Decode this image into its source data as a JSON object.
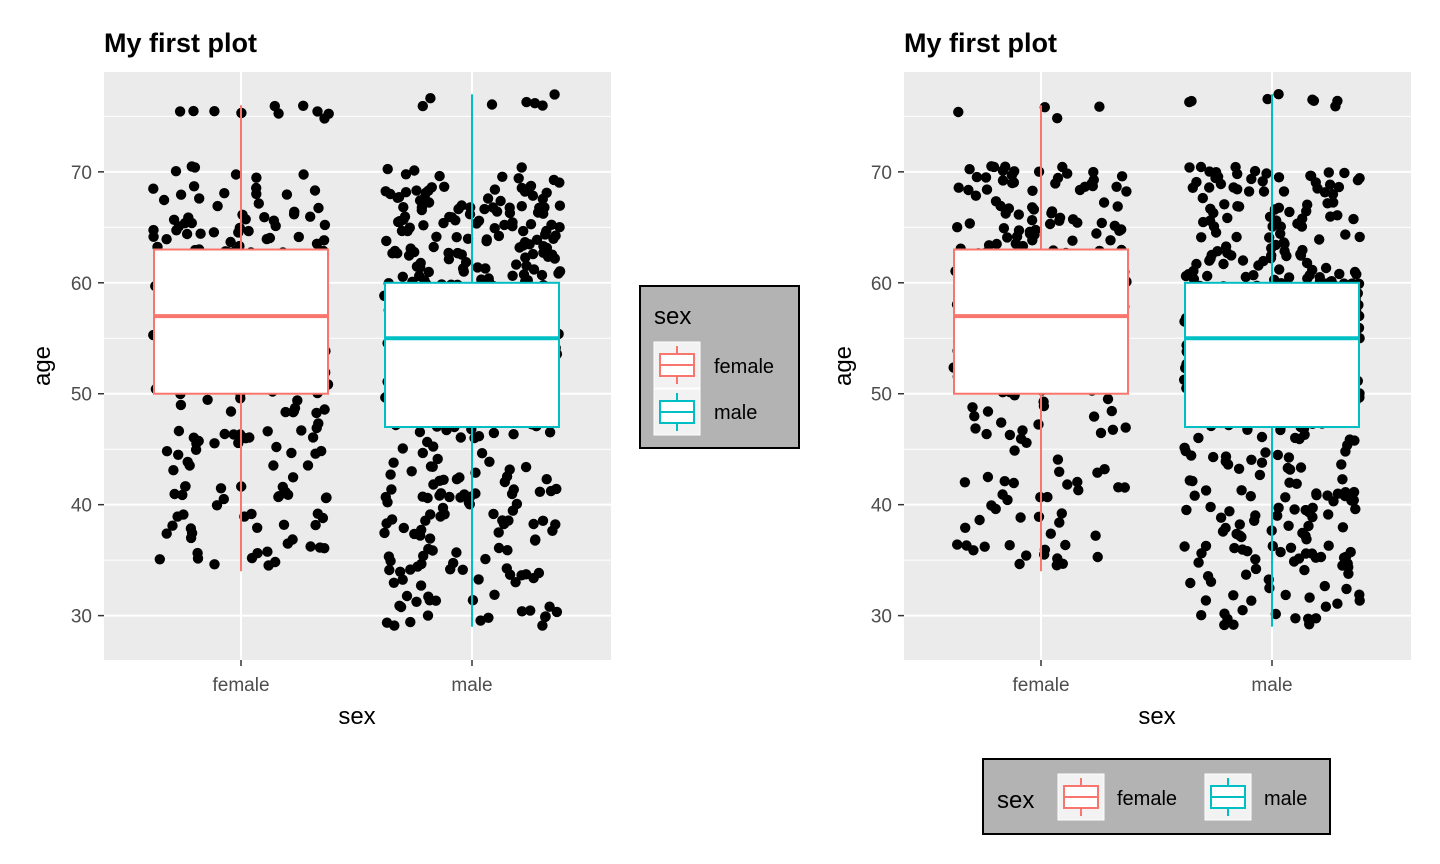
{
  "chart_data": [
    {
      "type": "boxplot",
      "title": "My first plot",
      "xlabel": "sex",
      "ylabel": "age",
      "categories": [
        "female",
        "male"
      ],
      "yticks": [
        30,
        40,
        50,
        60,
        70
      ],
      "ylim": [
        26,
        79
      ],
      "grid": true,
      "legend_position": "right",
      "boxes": [
        {
          "category": "female",
          "color": "#F8766D",
          "min": 34,
          "q1": 50,
          "median": 57,
          "q3": 63,
          "max": 76
        },
        {
          "category": "male",
          "color": "#00BFC4",
          "min": 29,
          "q1": 47,
          "median": 55,
          "q3": 60,
          "max": 77
        }
      ]
    },
    {
      "type": "boxplot",
      "title": "My first plot",
      "xlabel": "sex",
      "ylabel": "age",
      "categories": [
        "female",
        "male"
      ],
      "yticks": [
        30,
        40,
        50,
        60,
        70
      ],
      "ylim": [
        26,
        79
      ],
      "grid": true,
      "legend_position": "bottom",
      "boxes": [
        {
          "category": "female",
          "color": "#F8766D",
          "min": 34,
          "q1": 50,
          "median": 57,
          "q3": 63,
          "max": 76
        },
        {
          "category": "male",
          "color": "#00BFC4",
          "min": 29,
          "q1": 47,
          "median": 55,
          "q3": 60,
          "max": 77
        }
      ]
    }
  ],
  "legend": {
    "title": "sex",
    "entries": [
      {
        "label": "female",
        "color": "#F8766D"
      },
      {
        "label": "male",
        "color": "#00BFC4"
      }
    ],
    "background": "#B3B3B3"
  },
  "colors": {
    "panel": "#EBEBEB",
    "grid": "#FFFFFF",
    "points": "#000000"
  }
}
